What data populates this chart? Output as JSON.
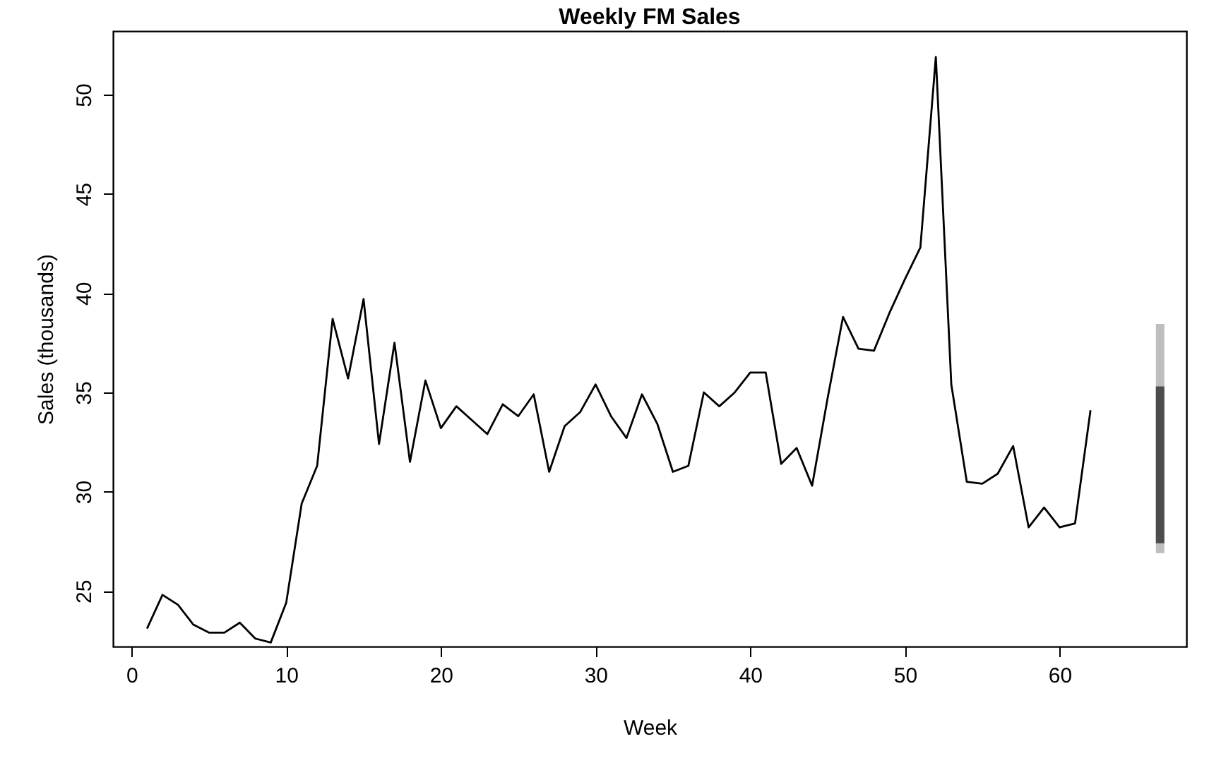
{
  "chart_data": {
    "type": "line",
    "title": "Weekly FM Sales",
    "xlabel": "Week",
    "ylabel": "Sales (thousands)",
    "x": [
      1,
      2,
      3,
      4,
      5,
      6,
      7,
      8,
      9,
      10,
      11,
      12,
      13,
      14,
      15,
      16,
      17,
      18,
      19,
      20,
      21,
      22,
      23,
      24,
      25,
      26,
      27,
      28,
      29,
      30,
      31,
      32,
      33,
      34,
      35,
      36,
      37,
      38,
      39,
      40,
      41,
      42,
      43,
      44,
      45,
      46,
      47,
      48,
      49,
      50,
      51,
      52,
      53,
      54,
      55,
      56,
      57,
      58,
      59,
      60,
      61,
      62
    ],
    "series": [
      {
        "color": "#000000",
        "values": [
          23.1,
          24.8,
          24.3,
          23.3,
          22.9,
          22.9,
          23.4,
          22.6,
          22.4,
          24.4,
          29.4,
          31.3,
          38.7,
          35.7,
          39.7,
          32.4,
          37.5,
          31.5,
          35.6,
          33.2,
          34.3,
          33.6,
          32.9,
          34.4,
          33.8,
          34.9,
          31.0,
          33.3,
          34.0,
          35.4,
          33.8,
          32.7,
          34.9,
          33.4,
          31.0,
          31.3,
          35.0,
          34.3,
          35.0,
          36.0,
          36.0,
          31.4,
          32.2,
          30.3,
          34.7,
          38.8,
          37.2,
          37.1,
          39.0,
          40.7,
          42.3,
          51.9,
          35.4,
          30.5,
          30.4,
          30.9,
          32.3,
          28.2,
          29.2,
          28.2,
          28.4,
          34.1
        ]
      },
      {
        "type": "bar",
        "color": "#bebebe",
        "x": [
          66.5
        ],
        "base": [
          26.9
        ],
        "values": [
          11.55
        ]
      },
      {
        "type": "bar",
        "color": "#4d4d4d",
        "x": [
          66.5
        ],
        "base": [
          27.4
        ],
        "values": [
          7.9
        ]
      }
    ],
    "xlim": [
      -1.2,
      68.2
    ],
    "xticks": [
      0,
      10,
      20,
      30,
      40,
      50,
      60
    ],
    "ylim": [
      22.2,
      53.2
    ],
    "yticks": [
      25,
      30,
      35,
      40,
      45,
      50
    ],
    "grid": false
  }
}
